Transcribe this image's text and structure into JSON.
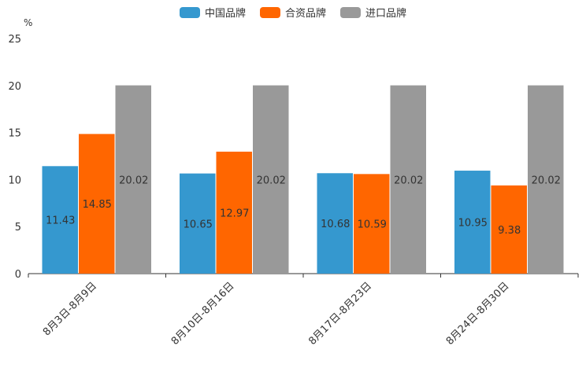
{
  "chart_data": {
    "type": "bar",
    "unit": "%",
    "categories": [
      "8月3日-8月9日",
      "8月10日-8月16日",
      "8月17日-8月23日",
      "8月24日-8月30日"
    ],
    "series": [
      {
        "name": "中国品牌",
        "color": "#3598cf",
        "values": [
          11.43,
          10.65,
          10.68,
          10.95
        ]
      },
      {
        "name": "合资品牌",
        "color": "#ff6600",
        "values": [
          14.85,
          12.97,
          10.59,
          9.38
        ]
      },
      {
        "name": "进口品牌",
        "color": "#999999",
        "values": [
          20.02,
          20.02,
          20.02,
          20.02
        ]
      }
    ],
    "ylim": [
      0,
      25
    ],
    "yticks": [
      0,
      5,
      10,
      15,
      20,
      25
    ],
    "legend_position": "top-center",
    "grid": false
  }
}
